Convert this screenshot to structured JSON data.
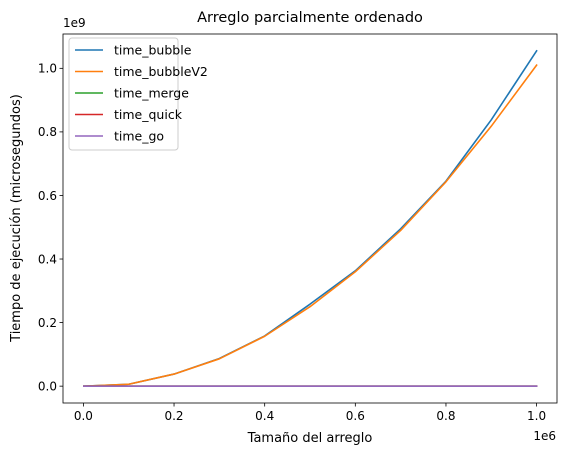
{
  "chart_data": {
    "type": "line",
    "title": "Arreglo parcialmente ordenado",
    "xlabel": "Tamaño del arreglo",
    "ylabel": "Tiempo de ejecución (microsegundos)",
    "x_multiplier_label": "1e6",
    "y_multiplier_label": "1e9",
    "x_scale": 1000000,
    "y_scale": 1000000000,
    "xlim": [
      -45000,
      1045000
    ],
    "ylim": [
      -53000000,
      1108000000
    ],
    "x_ticks": [
      0,
      200000,
      400000,
      600000,
      800000,
      1000000
    ],
    "x_tick_labels": [
      "0.0",
      "0.2",
      "0.4",
      "0.6",
      "0.8",
      "1.0"
    ],
    "y_ticks": [
      0,
      200000000,
      400000000,
      600000000,
      800000000,
      1000000000
    ],
    "y_tick_labels": [
      "0.0",
      "0.2",
      "0.4",
      "0.6",
      "0.8",
      "1.0"
    ],
    "grid": false,
    "legend_position": "upper-left",
    "x": [
      1000,
      100000,
      200000,
      300000,
      400000,
      500000,
      600000,
      700000,
      800000,
      900000,
      1000000
    ],
    "series": [
      {
        "name": "time_bubble",
        "color": "#1f77b4",
        "values": [
          0,
          6000000,
          38000000,
          87000000,
          158000000,
          258000000,
          363000000,
          495000000,
          645000000,
          838000000,
          1055000000
        ]
      },
      {
        "name": "time_bubbleV2",
        "color": "#ff7f0e",
        "values": [
          0,
          6000000,
          38000000,
          86000000,
          157000000,
          250000000,
          360000000,
          490000000,
          643000000,
          818000000,
          1010000000
        ]
      },
      {
        "name": "time_merge",
        "color": "#2ca02c",
        "values": [
          0,
          0,
          0,
          0,
          0,
          0,
          0,
          0,
          0,
          0,
          0
        ]
      },
      {
        "name": "time_quick",
        "color": "#d62728",
        "values": [
          0,
          0,
          0,
          0,
          0,
          0,
          0,
          0,
          0,
          0,
          0
        ]
      },
      {
        "name": "time_go",
        "color": "#9467bd",
        "values": [
          0,
          0,
          0,
          0,
          0,
          0,
          0,
          0,
          0,
          0,
          0
        ]
      }
    ]
  }
}
